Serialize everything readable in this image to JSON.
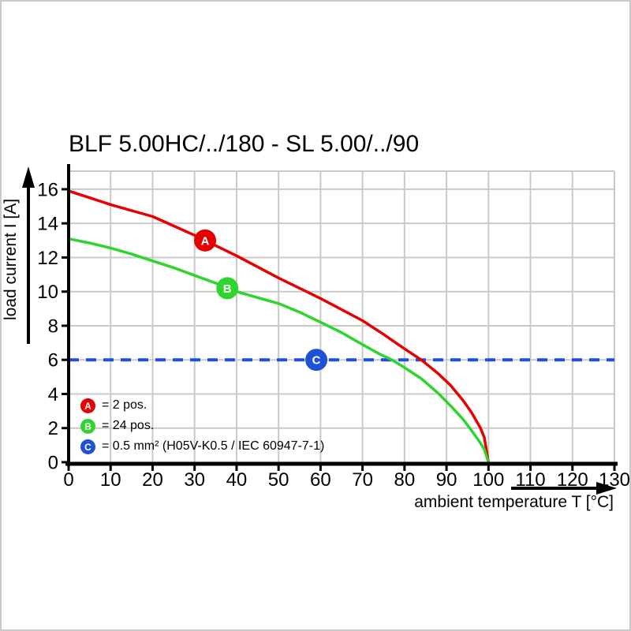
{
  "title": "BLF 5.00HC/../180 - SL 5.00/../90",
  "chart_data": {
    "type": "line",
    "title": "BLF 5.00HC/../180 - SL 5.00/../90",
    "xlabel": "ambient temperature T [°C]",
    "ylabel": "load current I [A]",
    "xlim": [
      0,
      130
    ],
    "ylim": [
      0,
      16
    ],
    "x_ticks": [
      0,
      10,
      20,
      30,
      40,
      50,
      60,
      70,
      80,
      90,
      100,
      110,
      120,
      130
    ],
    "y_ticks": [
      0,
      2,
      4,
      6,
      8,
      10,
      12,
      14,
      16
    ],
    "grid": true,
    "legend_position": "bottom-left-inside",
    "series": [
      {
        "id": "curve-2pos",
        "name": "A = 2 pos.",
        "color": "#e60000",
        "style": "solid",
        "marker": {
          "letter": "A",
          "at": [
            32.5,
            13.0
          ]
        },
        "points": [
          [
            0,
            15.9
          ],
          [
            5,
            15.5
          ],
          [
            10,
            15.1
          ],
          [
            15,
            14.75
          ],
          [
            20,
            14.4
          ],
          [
            25,
            13.85
          ],
          [
            30,
            13.3
          ],
          [
            35,
            12.7
          ],
          [
            40,
            12.1
          ],
          [
            45,
            11.45
          ],
          [
            50,
            10.8
          ],
          [
            55,
            10.2
          ],
          [
            60,
            9.6
          ],
          [
            65,
            8.95
          ],
          [
            70,
            8.3
          ],
          [
            75,
            7.5
          ],
          [
            80,
            6.65
          ],
          [
            84,
            6.0
          ],
          [
            88,
            5.2
          ],
          [
            91,
            4.5
          ],
          [
            94,
            3.6
          ],
          [
            96,
            2.9
          ],
          [
            98,
            2.05
          ],
          [
            99,
            1.45
          ],
          [
            100,
            0
          ]
        ]
      },
      {
        "id": "curve-24pos",
        "name": "B = 24 pos.",
        "color": "#2fd52f",
        "style": "solid",
        "marker": {
          "letter": "B",
          "at": [
            37.8,
            10.2
          ]
        },
        "points": [
          [
            0,
            13.1
          ],
          [
            5,
            12.85
          ],
          [
            10,
            12.55
          ],
          [
            15,
            12.2
          ],
          [
            20,
            11.8
          ],
          [
            25,
            11.4
          ],
          [
            30,
            10.95
          ],
          [
            35,
            10.5
          ],
          [
            40,
            10.0
          ],
          [
            45,
            9.65
          ],
          [
            50,
            9.3
          ],
          [
            55,
            8.8
          ],
          [
            60,
            8.2
          ],
          [
            65,
            7.6
          ],
          [
            70,
            6.9
          ],
          [
            74,
            6.35
          ],
          [
            77,
            6.0
          ],
          [
            80,
            5.55
          ],
          [
            84,
            4.9
          ],
          [
            88,
            4.05
          ],
          [
            91,
            3.3
          ],
          [
            94,
            2.5
          ],
          [
            96,
            1.85
          ],
          [
            98,
            1.15
          ],
          [
            99,
            0.75
          ],
          [
            100,
            0
          ]
        ]
      },
      {
        "id": "limit-0-5mm2",
        "name": "C = 0.5 mm² (H05V-K0.5 / IEC 60947-7-1)",
        "color": "#1e50d8",
        "style": "dashed",
        "marker": {
          "letter": "C",
          "at": [
            59,
            6.0
          ]
        },
        "points": [
          [
            0,
            6
          ],
          [
            130,
            6
          ]
        ]
      }
    ]
  },
  "legend": {
    "items": [
      {
        "letter": "A",
        "color": "#e60000",
        "text": "= 2 pos."
      },
      {
        "letter": "B",
        "color": "#2fd52f",
        "text": "= 24 pos."
      },
      {
        "letter": "C",
        "color": "#1e50d8",
        "text": "= 0.5 mm² (H05V-K0.5 / IEC 60947-7-1)"
      }
    ]
  }
}
